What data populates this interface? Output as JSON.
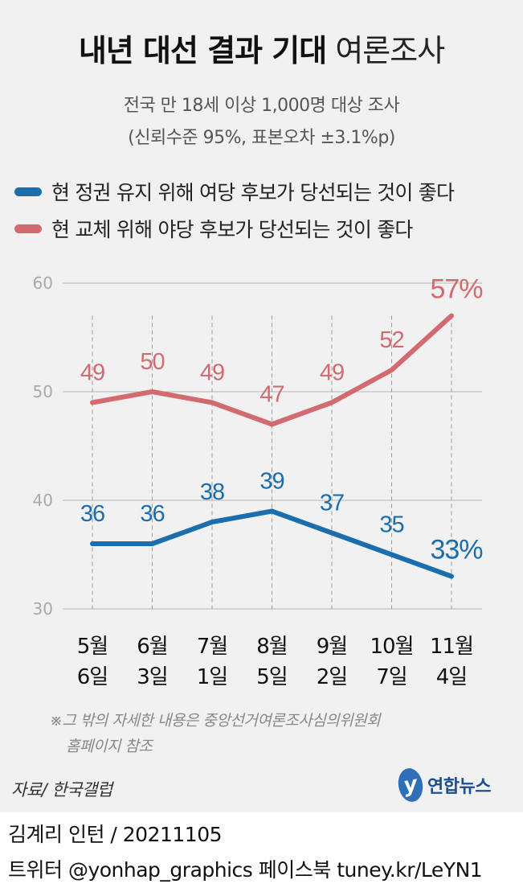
{
  "title": {
    "bold": "내년 대선 결과 기대",
    "light": "여론조사"
  },
  "subtitle": {
    "line1": "전국 만 18세 이상 1,000명 대상 조사",
    "line2": "(신뢰수준 95%, 표본오차 ±3.1%p)"
  },
  "colors": {
    "blue": "#1a6ead",
    "red": "#d26a70",
    "grid": "#b8b8b8",
    "panel": "#f1f1f1"
  },
  "chart_data": {
    "type": "line",
    "categories": [
      [
        "5월",
        "6일"
      ],
      [
        "6월",
        "3일"
      ],
      [
        "7월",
        "1일"
      ],
      [
        "8월",
        "5일"
      ],
      [
        "9월",
        "2일"
      ],
      [
        "10월",
        "7일"
      ],
      [
        "11월",
        "4일"
      ]
    ],
    "series": [
      {
        "name": "현 정권 유지 위해 여당 후보가 당선되는 것이 좋다",
        "color": "#1a6ead",
        "values": [
          36,
          36,
          38,
          39,
          37,
          35,
          33
        ],
        "labels": [
          "36",
          "36",
          "38",
          "39",
          "37",
          "35",
          "33%"
        ]
      },
      {
        "name": "현 교체 위해 야당 후보가 당선되는 것이 좋다",
        "color": "#d26a70",
        "values": [
          49,
          50,
          49,
          47,
          49,
          52,
          57
        ],
        "labels": [
          "49",
          "50",
          "49",
          "47",
          "49",
          "52",
          "57%"
        ]
      }
    ],
    "yticks": [
      "60",
      "50",
      "40",
      "30"
    ],
    "ylim": [
      30,
      60
    ],
    "grid": true,
    "legend": "top-left"
  },
  "note": {
    "line1": "※그 밖의 자세한 내용은 중앙선거여론조사심의위원회",
    "line2": "홈페이지 참조"
  },
  "source": "자료/ 한국갤럽",
  "logo": {
    "mark": "y",
    "text": "연합뉴스"
  },
  "credit": {
    "line1": "김계리 인턴 / 20211105",
    "line2": "트위터 @yonhap_graphics  페이스북 tuney.kr/LeYN1"
  }
}
